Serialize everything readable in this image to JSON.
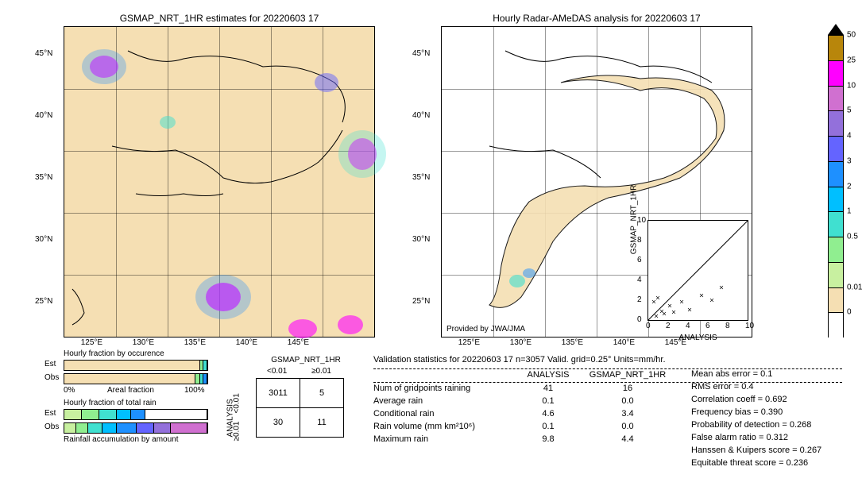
{
  "left_map": {
    "title": "GSMAP_NRT_1HR estimates for 20220603 17",
    "xticks": [
      "125°E",
      "130°E",
      "135°E",
      "140°E",
      "145°E"
    ],
    "yticks": [
      "25°N",
      "30°N",
      "35°N",
      "40°N",
      "45°N"
    ],
    "background_color": "#f5dfb3"
  },
  "right_map": {
    "title": "Hourly Radar-AMeDAS analysis for 20220603 17",
    "xticks": [
      "125°E",
      "130°E",
      "135°E",
      "140°E",
      "145°E"
    ],
    "yticks": [
      "25°N",
      "30°N",
      "35°N",
      "40°N",
      "45°N"
    ],
    "attribution": "Provided by JWA/JMA",
    "background_color": "#ffffff"
  },
  "colorbar": {
    "segments": [
      {
        "color": "#000000",
        "type": "triangle"
      },
      {
        "color": "#b8860b"
      },
      {
        "color": "#ff00ff"
      },
      {
        "color": "#d070d0"
      },
      {
        "color": "#9370db"
      },
      {
        "color": "#6464ff"
      },
      {
        "color": "#1e90ff"
      },
      {
        "color": "#00bfff"
      },
      {
        "color": "#40e0d0"
      },
      {
        "color": "#90ee90"
      },
      {
        "color": "#c8f0a0"
      },
      {
        "color": "#f5dfb3"
      },
      {
        "color": "#ffffff"
      }
    ],
    "labels": [
      "50",
      "25",
      "10",
      "5",
      "4",
      "3",
      "2",
      "1",
      "0.5",
      "0.01",
      "0"
    ]
  },
  "scatter": {
    "xlabel": "ANALYSIS",
    "ylabel": "GSMAP_NRT_1HR",
    "xlim": [
      0,
      10
    ],
    "ylim": [
      0,
      10
    ],
    "ticks": [
      0,
      2,
      4,
      6,
      8,
      10
    ]
  },
  "hourly_fraction_occurrence": {
    "title": "Hourly fraction by occurence",
    "est_label": "Est",
    "obs_label": "Obs",
    "xaxis_left": "0%",
    "xaxis_right": "100%",
    "xaxis_title": "Areal fraction",
    "est": [
      {
        "w": 96,
        "c": "#f5dfb3"
      },
      {
        "w": 2,
        "c": "#90ee90"
      },
      {
        "w": 2,
        "c": "#40e0d0"
      }
    ],
    "obs": [
      {
        "w": 93,
        "c": "#f5dfb3"
      },
      {
        "w": 3,
        "c": "#90ee90"
      },
      {
        "w": 2,
        "c": "#40e0d0"
      },
      {
        "w": 2,
        "c": "#1e90ff"
      }
    ]
  },
  "hourly_fraction_rain": {
    "title": "Hourly fraction of total rain",
    "est_label": "Est",
    "obs_label": "Obs",
    "footer": "Rainfall accumulation by amount",
    "est": [
      {
        "w": 12,
        "c": "#c8f0a0"
      },
      {
        "w": 12,
        "c": "#90ee90"
      },
      {
        "w": 12,
        "c": "#40e0d0"
      },
      {
        "w": 10,
        "c": "#00bfff"
      },
      {
        "w": 10,
        "c": "#1e90ff"
      },
      {
        "w": 44,
        "c": "#ffffff"
      }
    ],
    "obs": [
      {
        "w": 8,
        "c": "#c8f0a0"
      },
      {
        "w": 8,
        "c": "#90ee90"
      },
      {
        "w": 10,
        "c": "#40e0d0"
      },
      {
        "w": 10,
        "c": "#00bfff"
      },
      {
        "w": 14,
        "c": "#1e90ff"
      },
      {
        "w": 12,
        "c": "#6464ff"
      },
      {
        "w": 12,
        "c": "#9370db"
      },
      {
        "w": 26,
        "c": "#d070d0"
      }
    ]
  },
  "contingency": {
    "col_title": "GSMAP_NRT_1HR",
    "col_left": "<0.01",
    "col_right": "≥0.01",
    "row_title": "ANALYSIS",
    "row_top": "<0.01",
    "row_bottom": "≥0.01",
    "cells": [
      [
        "3011",
        "5"
      ],
      [
        "30",
        "11"
      ]
    ]
  },
  "validation": {
    "header": "Validation statistics for 20220603 17  n=3057 Valid. grid=0.25° Units=mm/hr.",
    "col1": "ANALYSIS",
    "col2": "GSMAP_NRT_1HR",
    "rows": [
      {
        "label": "Num of gridpoints raining",
        "v1": "41",
        "v2": "16"
      },
      {
        "label": "Average rain",
        "v1": "0.1",
        "v2": "0.0"
      },
      {
        "label": "Conditional rain",
        "v1": "4.6",
        "v2": "3.4"
      },
      {
        "label": "Rain volume (mm km²10⁶)",
        "v1": "0.1",
        "v2": "0.0"
      },
      {
        "label": "Maximum rain",
        "v1": "9.8",
        "v2": "4.4"
      }
    ],
    "metrics": [
      {
        "label": "Mean abs error =",
        "v": "0.1"
      },
      {
        "label": "RMS error =",
        "v": "0.4"
      },
      {
        "label": "Correlation coeff =",
        "v": "0.692"
      },
      {
        "label": "Frequency bias =",
        "v": "0.390"
      },
      {
        "label": "Probability of detection =",
        "v": "0.268"
      },
      {
        "label": "False alarm ratio =",
        "v": "0.312"
      },
      {
        "label": "Hanssen & Kuipers score =",
        "v": "0.267"
      },
      {
        "label": "Equitable threat score =",
        "v": "0.236"
      }
    ]
  }
}
